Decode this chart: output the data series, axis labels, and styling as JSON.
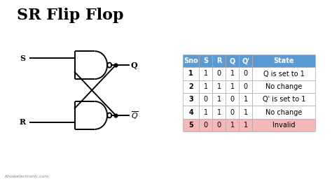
{
  "title": "SR Flip Flop",
  "title_fontsize": 16,
  "background_color": "#ffffff",
  "circuit_color": "#000000",
  "watermark": "Knowelectronic.com",
  "table_header": [
    "Sno",
    "S",
    "R",
    "Q",
    "Q'",
    "State"
  ],
  "table_rows": [
    [
      "1",
      "1",
      "0",
      "1",
      "0",
      "Q is set to 1"
    ],
    [
      "2",
      "1",
      "1",
      "1",
      "0",
      "No change"
    ],
    [
      "3",
      "0",
      "1",
      "0",
      "1",
      "Q' is set to 1"
    ],
    [
      "4",
      "1",
      "1",
      "0",
      "1",
      "No change"
    ],
    [
      "5",
      "0",
      "0",
      "1",
      "1",
      "Invalid"
    ]
  ],
  "header_color": "#5b9bd5",
  "row_colors": [
    "#ffffff",
    "#ffffff",
    "#ffffff",
    "#ffffff",
    "#f4b8b8"
  ],
  "table_text_color": "#000000",
  "header_text_color": "#ffffff"
}
